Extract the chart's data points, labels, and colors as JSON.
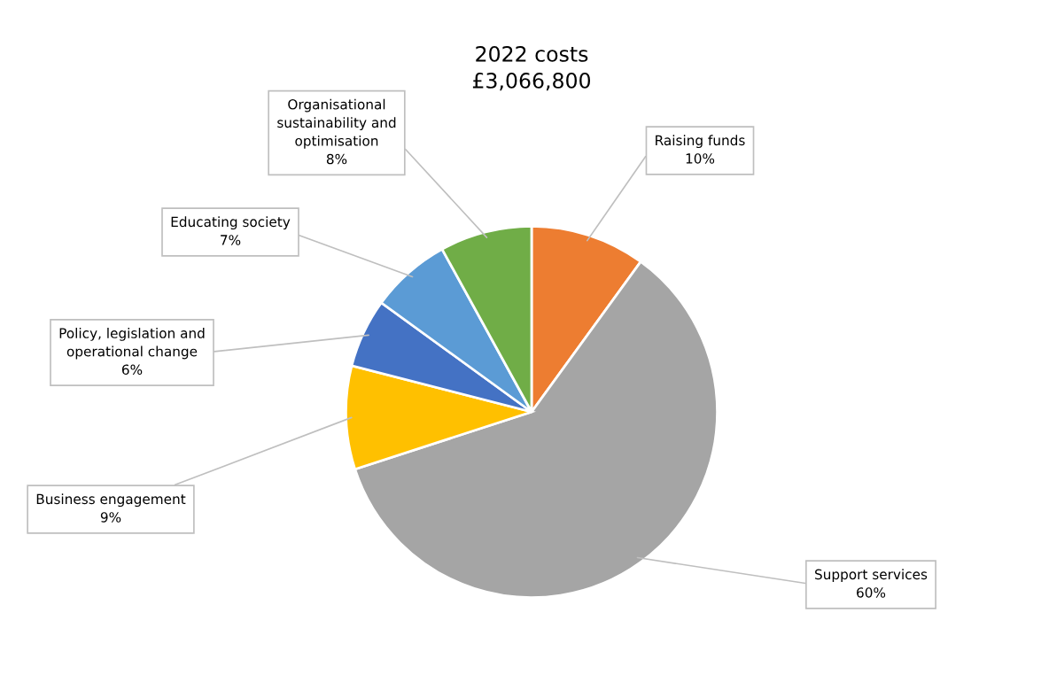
{
  "chart_data": {
    "type": "pie",
    "title": "2022 costs\n£3,066,800",
    "categories": [
      "Raising funds",
      "Support services",
      "Business engagement",
      "Policy, legislation and\noperational change",
      "Educating society",
      "Organisational\nsustainability and\noptimisation"
    ],
    "values": [
      10,
      60,
      9,
      6,
      7,
      8
    ],
    "colors": [
      "#ed7d31",
      "#a5a5a5",
      "#ffc000",
      "#4472c4",
      "#5b9bd5",
      "#70ad47"
    ],
    "value_labels": [
      "10%",
      "60%",
      "9%",
      "6%",
      "7%",
      "8%"
    ]
  }
}
